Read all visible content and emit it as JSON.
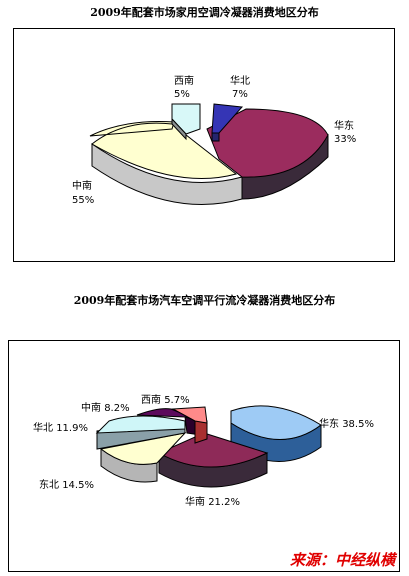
{
  "chart_data": [
    {
      "type": "pie",
      "title": "2009年配套市场家用空调冷凝器消费地区分布",
      "slices": [
        {
          "label": "华东",
          "pct": "33%",
          "value": 33,
          "color": "#9b2c5e",
          "side": "#3a2a3a"
        },
        {
          "label": "中南",
          "pct": "55%",
          "value": 55,
          "color": "#ffffd0",
          "side": "#c8c8c8"
        },
        {
          "label": "西南",
          "pct": "5%",
          "value": 5,
          "color": "#d8f8f8",
          "side": "#8a9090"
        },
        {
          "label": "华北",
          "pct": "7%",
          "value": 7,
          "color": "#3535b5",
          "side": "#25256e"
        }
      ]
    },
    {
      "type": "pie",
      "title": "2009年配套市场汽车空调平行流冷凝器消费地区分布",
      "slices": [
        {
          "label": "华东",
          "pct": "38.5%",
          "value": 38.5,
          "color": "#9ecbf5",
          "side": "#2d5f99"
        },
        {
          "label": "华南",
          "pct": "21.2%",
          "value": 21.2,
          "color": "#8e2a58",
          "side": "#3a2a3a"
        },
        {
          "label": "东北",
          "pct": "14.5%",
          "value": 14.5,
          "color": "#ffffd0",
          "side": "#b5b5b5"
        },
        {
          "label": "华北",
          "pct": "11.9%",
          "value": 11.9,
          "color": "#cff6f8",
          "side": "#8aa0a8"
        },
        {
          "label": "中南",
          "pct": "8.2%",
          "value": 8.2,
          "color": "#5c0a5c",
          "side": "#2a002a"
        },
        {
          "label": "西南",
          "pct": "5.7%",
          "value": 5.7,
          "color": "#ff8a8a",
          "side": "#a83030"
        }
      ]
    }
  ],
  "source": "来源：中经纵横"
}
